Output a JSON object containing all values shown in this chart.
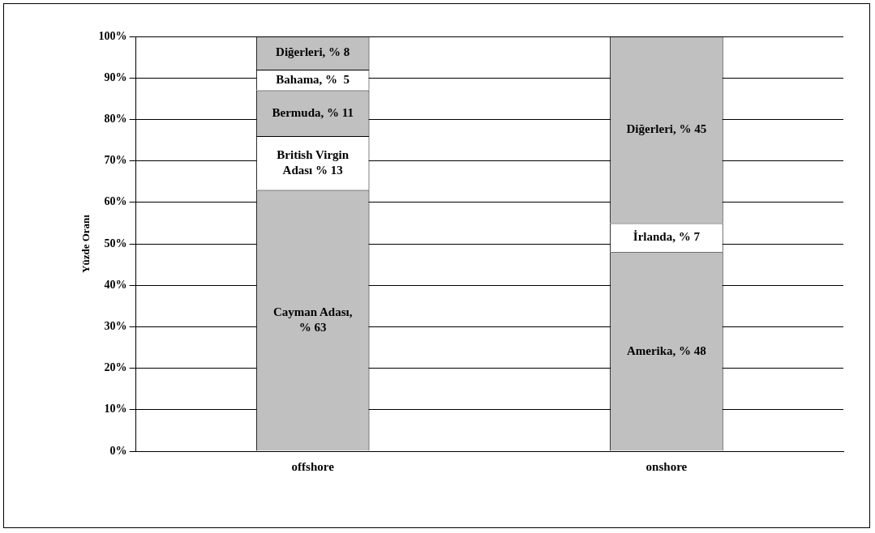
{
  "chart_data": {
    "type": "bar",
    "stacked": true,
    "ylabel": "Yüzde Oranı",
    "categories": [
      "offshore",
      "onshore"
    ],
    "ylim": [
      0,
      100
    ],
    "yticks": [
      {
        "value": 0,
        "label": "0%"
      },
      {
        "value": 10,
        "label": "10%"
      },
      {
        "value": 20,
        "label": "20%"
      },
      {
        "value": 30,
        "label": "30%"
      },
      {
        "value": 40,
        "label": "40%"
      },
      {
        "value": 50,
        "label": "50%"
      },
      {
        "value": 60,
        "label": "60%"
      },
      {
        "value": 70,
        "label": "70%"
      },
      {
        "value": 80,
        "label": "80%"
      },
      {
        "value": 90,
        "label": "90%"
      },
      {
        "value": 100,
        "label": "100%"
      }
    ],
    "grid": "y",
    "series": [
      {
        "color": "#c0c0c0",
        "values": [
          63,
          48
        ],
        "value_labels": [
          "Cayman Adası, % 63",
          "Amerika, % 48"
        ]
      },
      {
        "color": "#ffffff",
        "values": [
          13,
          7
        ],
        "value_labels": [
          "British Virgin Adası % 13",
          "İrlanda, % 7"
        ]
      },
      {
        "color": "#c0c0c0",
        "values": [
          11,
          45
        ],
        "value_labels": [
          "Bermuda, % 11",
          "Diğerleri, % 45"
        ]
      },
      {
        "color": "#ffffff",
        "values": [
          5,
          null
        ],
        "value_labels": [
          "Bahama, %  5",
          null
        ]
      },
      {
        "color": "#c0c0c0",
        "values": [
          8,
          null
        ],
        "value_labels": [
          "Diğerleri, % 8",
          null
        ]
      }
    ]
  }
}
